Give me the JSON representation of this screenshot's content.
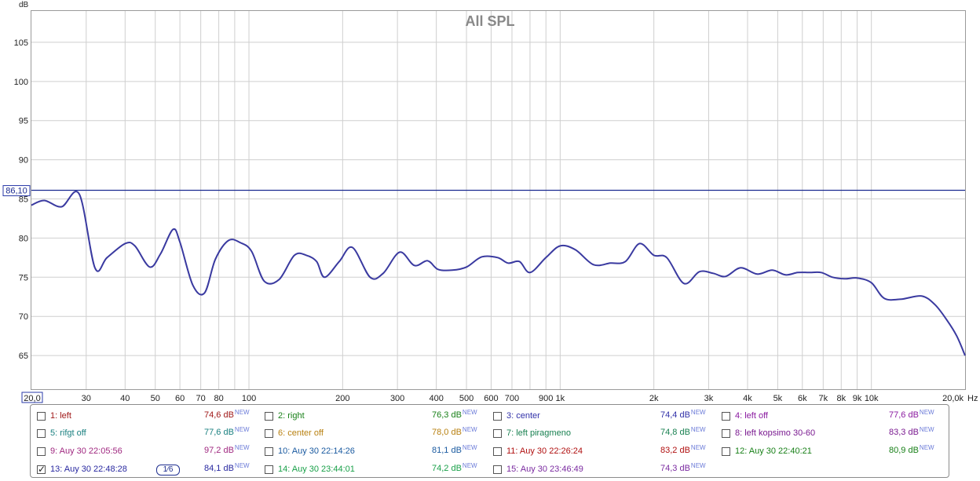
{
  "chart_data": {
    "type": "line",
    "title": "All SPL",
    "ylabel": "dB",
    "xlabel": "Hz",
    "xscale": "log",
    "xlim": [
      20,
      20000
    ],
    "ylim": [
      60.7,
      109
    ],
    "grid": true,
    "yticks": [
      65,
      70,
      75,
      80,
      85,
      90,
      95,
      100,
      105
    ],
    "xticks": [
      {
        "v": 20,
        "label": "20,0"
      },
      {
        "v": 30,
        "label": "30"
      },
      {
        "v": 40,
        "label": "40"
      },
      {
        "v": 50,
        "label": "50"
      },
      {
        "v": 60,
        "label": "60"
      },
      {
        "v": 70,
        "label": "70"
      },
      {
        "v": 80,
        "label": "80"
      },
      {
        "v": 90,
        "label": ""
      },
      {
        "v": 100,
        "label": "100"
      },
      {
        "v": 200,
        "label": "200"
      },
      {
        "v": 300,
        "label": "300"
      },
      {
        "v": 400,
        "label": "400"
      },
      {
        "v": 500,
        "label": "500"
      },
      {
        "v": 600,
        "label": "600"
      },
      {
        "v": 700,
        "label": "700"
      },
      {
        "v": 800,
        "label": ""
      },
      {
        "v": 900,
        "label": "900"
      },
      {
        "v": 1000,
        "label": "1k"
      },
      {
        "v": 2000,
        "label": "2k"
      },
      {
        "v": 3000,
        "label": "3k"
      },
      {
        "v": 4000,
        "label": "4k"
      },
      {
        "v": 5000,
        "label": "5k"
      },
      {
        "v": 6000,
        "label": "6k"
      },
      {
        "v": 7000,
        "label": "7k"
      },
      {
        "v": 8000,
        "label": "8k"
      },
      {
        "v": 9000,
        "label": "9k"
      },
      {
        "v": 10000,
        "label": "10k"
      },
      {
        "v": 20000,
        "label": "20,0k"
      }
    ],
    "reference_line": {
      "value": 86.1,
      "label": "86,10"
    },
    "series": [
      {
        "color": "#3a3aa0",
        "x": [
          20,
          22,
          25,
          28.5,
          32,
          35,
          40,
          43,
          48,
          52,
          57,
          60,
          66,
          72,
          78,
          86,
          94,
          102,
          112,
          125,
          140,
          153,
          165,
          175,
          195,
          215,
          245,
          270,
          305,
          340,
          375,
          405,
          450,
          500,
          560,
          630,
          680,
          740,
          800,
          900,
          1000,
          1120,
          1280,
          1450,
          1620,
          1800,
          2000,
          2200,
          2500,
          2800,
          3100,
          3400,
          3800,
          4300,
          4800,
          5300,
          5800,
          6300,
          6900,
          7500,
          8200,
          9000,
          10000,
          11000,
          12500,
          14500,
          16000,
          17500,
          18800,
          20000
        ],
        "y": [
          84.2,
          84.8,
          84.0,
          85.6,
          76.2,
          77.5,
          79.3,
          79.0,
          76.3,
          78.0,
          81.1,
          79.5,
          74.0,
          73.0,
          77.3,
          79.7,
          79.4,
          78.3,
          74.5,
          74.7,
          77.8,
          77.8,
          77.0,
          75.0,
          77.0,
          78.8,
          75.0,
          75.5,
          78.2,
          76.5,
          77.1,
          76.0,
          75.9,
          76.3,
          77.6,
          77.5,
          76.8,
          77.0,
          75.6,
          77.5,
          79.0,
          78.5,
          76.6,
          76.8,
          77.0,
          79.3,
          77.8,
          77.5,
          74.2,
          75.7,
          75.5,
          75.1,
          76.2,
          75.4,
          75.9,
          75.3,
          75.6,
          75.6,
          75.6,
          75.0,
          74.8,
          74.9,
          74.3,
          72.3,
          72.2,
          72.6,
          71.5,
          69.5,
          67.5,
          65.0
        ]
      }
    ]
  },
  "legend": {
    "items": [
      {
        "label": "1: left",
        "value": "74,6 dB",
        "color": "#a01818",
        "checked": false
      },
      {
        "label": "2: right",
        "value": "76,3 dB",
        "color": "#188018",
        "checked": false
      },
      {
        "label": "3: center",
        "value": "74,4 dB",
        "color": "#3030a8",
        "checked": false
      },
      {
        "label": "4: left off",
        "value": "77,6 dB",
        "color": "#8a1aa0",
        "checked": false
      },
      {
        "label": "5: rifgt off",
        "value": "77,6 dB",
        "color": "#1a8080",
        "checked": false
      },
      {
        "label": "6: center off",
        "value": "78,0 dB",
        "color": "#b88010",
        "checked": false
      },
      {
        "label": "7: left piragmeno",
        "value": "74,8 dB",
        "color": "#188050",
        "checked": false
      },
      {
        "label": "8: left kopsimo 30-60",
        "value": "83,3 dB",
        "color": "#7a1a90",
        "checked": false
      },
      {
        "label": "9: Auy 30 22:05:56",
        "value": "97,2 dB",
        "color": "#a02880",
        "checked": false
      },
      {
        "label": "10: Auy 30 22:14:26",
        "value": "81,1 dB",
        "color": "#1a5aa0",
        "checked": false
      },
      {
        "label": "11: Auy 30 22:26:24",
        "value": "83,2 dB",
        "color": "#b01010",
        "checked": false
      },
      {
        "label": "12: Auy 30 22:40:21",
        "value": "80,9 dB",
        "color": "#188018",
        "checked": false
      },
      {
        "label": "13: Auy 30 22:48:28",
        "value": "84,1 dB",
        "color": "#2828a0",
        "checked": true
      },
      {
        "label": "14: Auy 30 23:44:01",
        "value": "74,2 dB",
        "color": "#18a048",
        "checked": false
      },
      {
        "label": "15: Auy 30 23:46:49",
        "value": "74,3 dB",
        "color": "#7a2aa0",
        "checked": false
      }
    ],
    "new_tag": "NEW",
    "smoothing_badge": "1⁄6"
  }
}
